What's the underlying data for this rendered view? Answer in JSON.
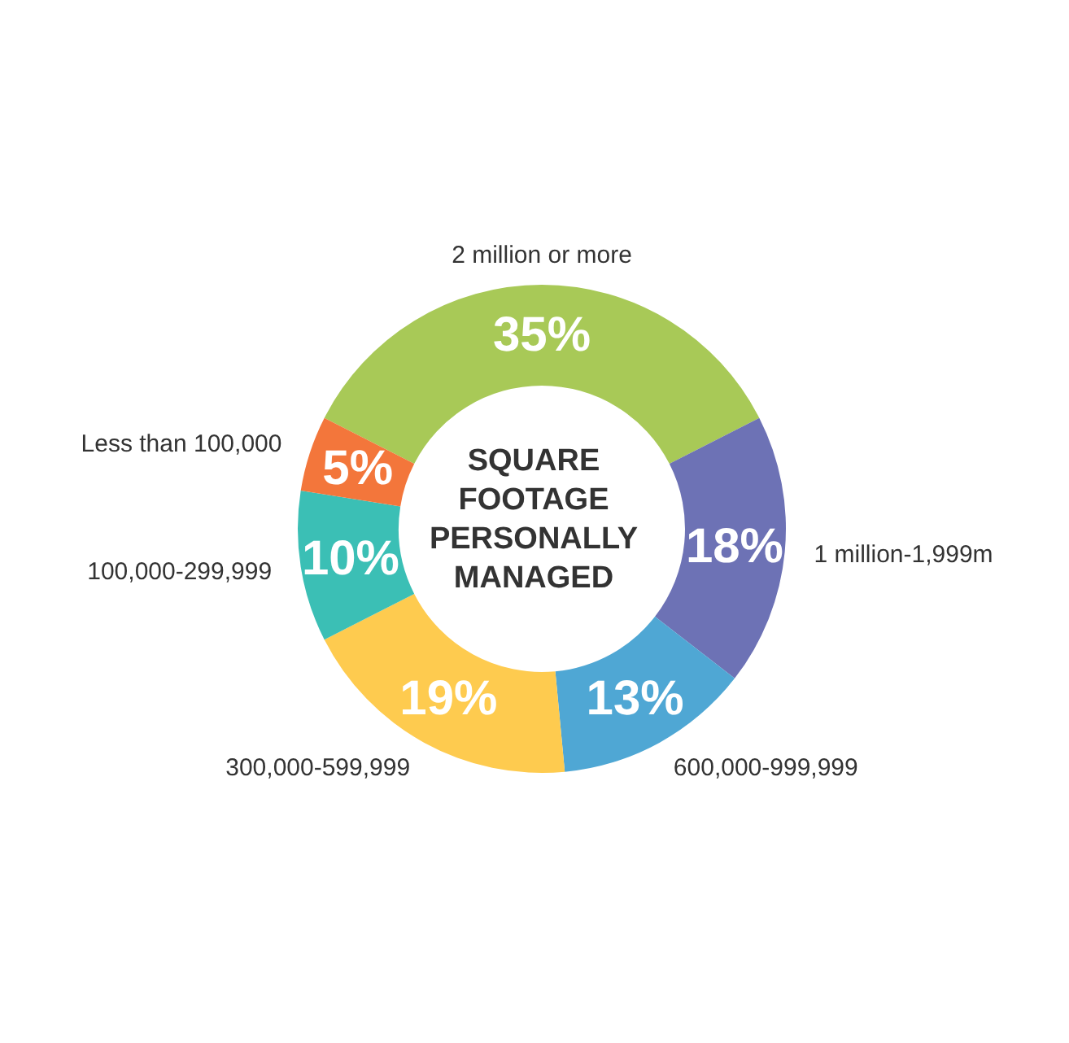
{
  "chart_data": {
    "type": "donut",
    "title": "SQUARE FOOTAGE PERSONALLY MANAGED",
    "categories": [
      "2 million or more",
      "1 million-1,999m",
      "600,000-999,999",
      "300,000-599,999",
      "100,000-299,999",
      "Less than 100,000"
    ],
    "values": [
      35,
      18,
      13,
      19,
      10,
      5
    ],
    "value_labels": [
      "35%",
      "18%",
      "13%",
      "19%",
      "10%",
      "5%"
    ],
    "colors": [
      "#a8c957",
      "#6d72b5",
      "#4fa7d4",
      "#fecb4f",
      "#3bbfb5",
      "#f3763b"
    ]
  }
}
